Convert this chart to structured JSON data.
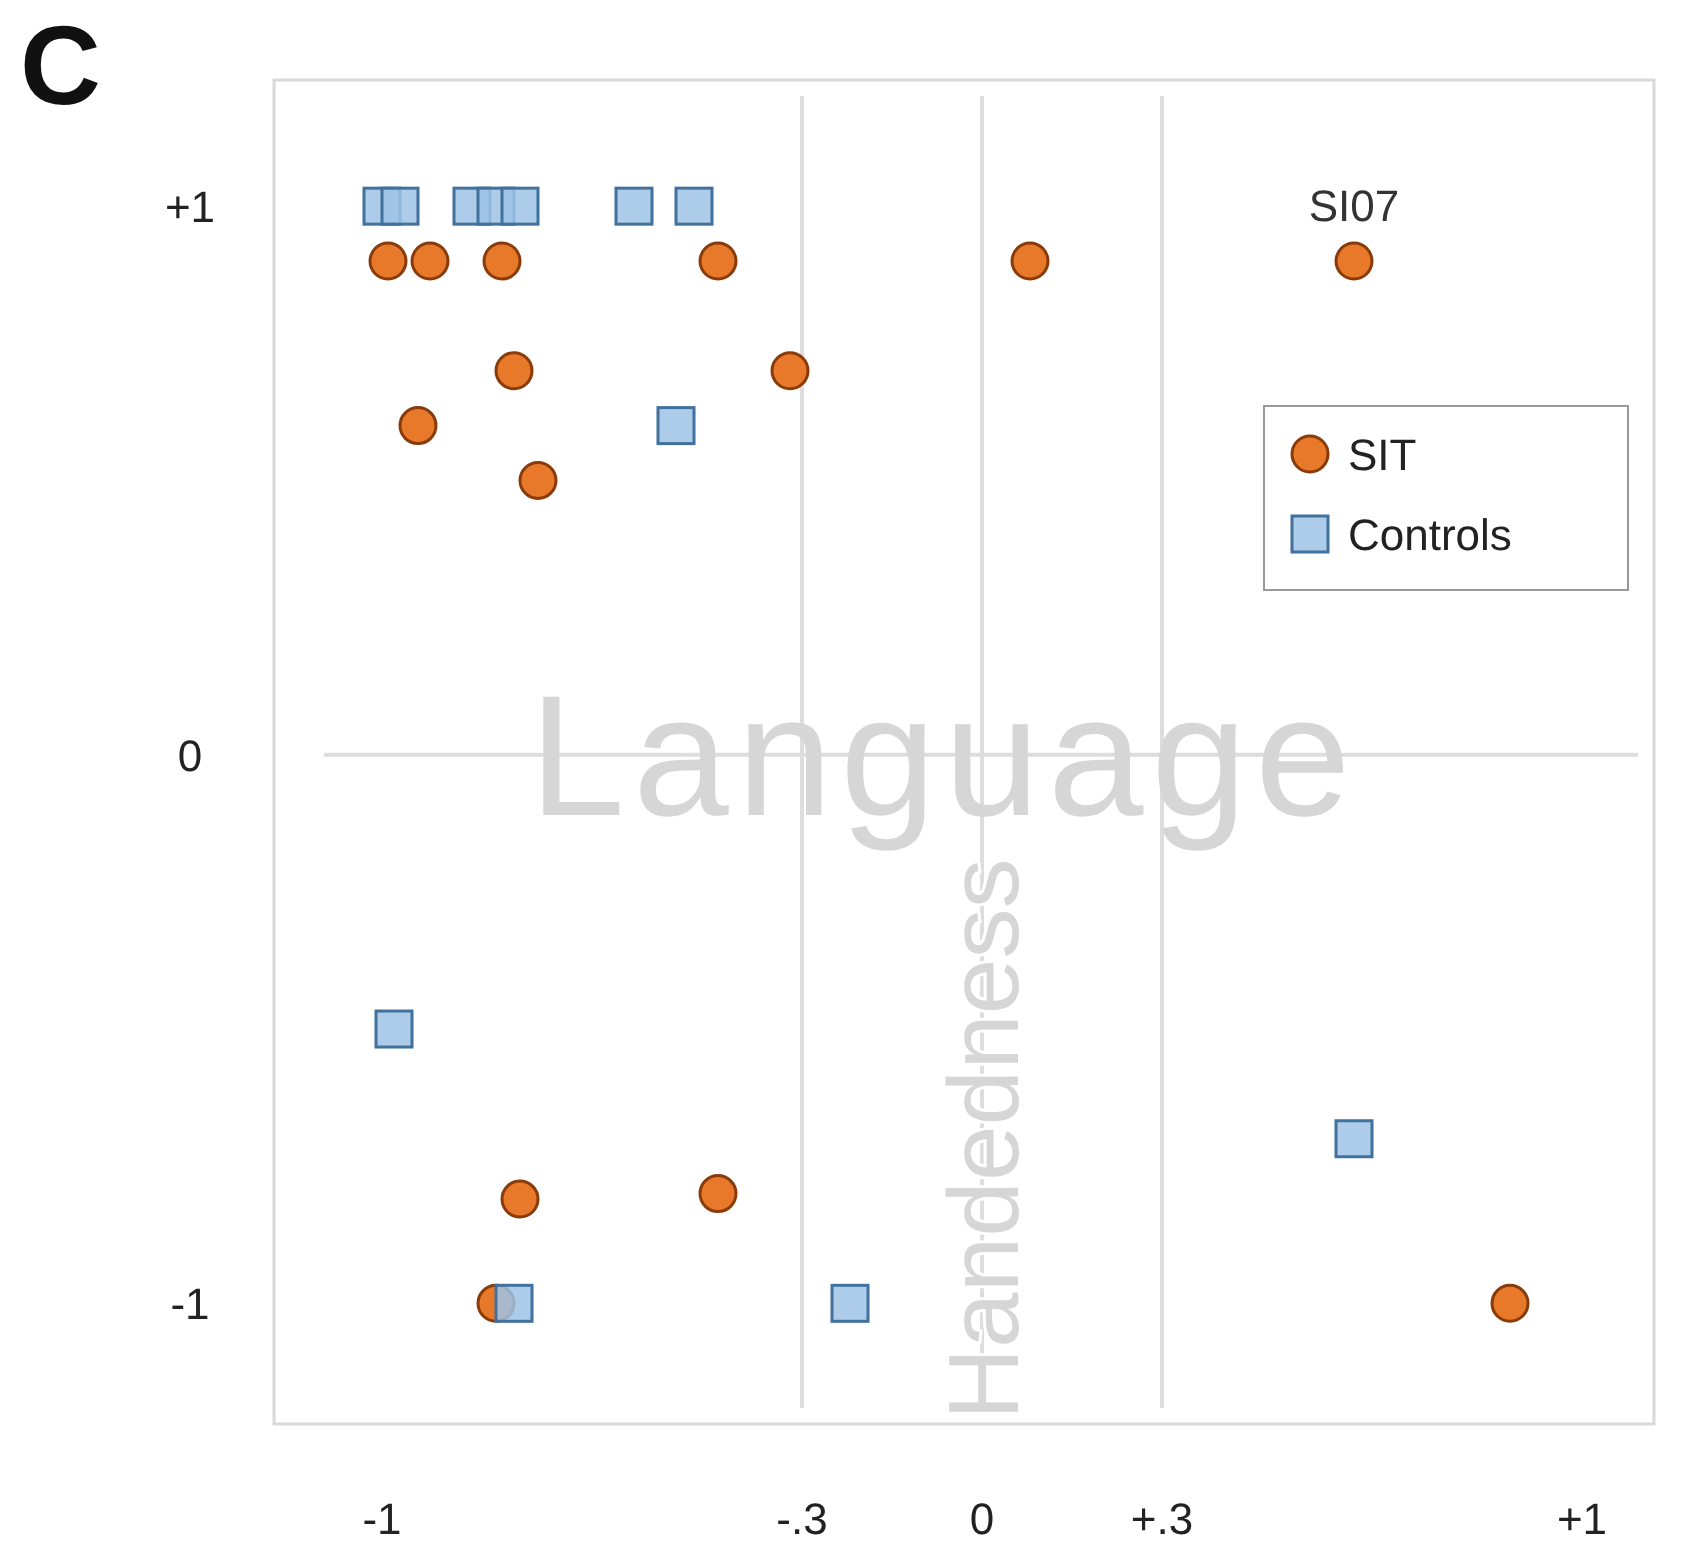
{
  "chart_data": {
    "type": "scatter",
    "xlabel": "Language",
    "ylabel": "Handedness",
    "annotations": [
      "C",
      {
        "text": "SI07",
        "x": 0.62,
        "y": 0.9
      }
    ],
    "xlim": [
      -1.18,
      1.12
    ],
    "ylim": [
      -1.22,
      1.23
    ],
    "xticks": [
      {
        "value": -1,
        "label": "-1"
      },
      {
        "value": -0.3,
        "label": "-.3"
      },
      0,
      {
        "value": 0.3,
        "label": "+.3"
      },
      {
        "value": 1,
        "label": "+1"
      }
    ],
    "yticks": [
      {
        "value": 1,
        "label": "+1"
      },
      0,
      {
        "value": -1,
        "label": "-1"
      }
    ],
    "ref_lines": [
      {
        "axis": "x",
        "value": -0.3,
        "color": "#dddddd"
      },
      {
        "axis": "x",
        "value": 0,
        "color": "#dddddd"
      },
      {
        "axis": "x",
        "value": 0.3,
        "color": "#dddddd"
      },
      {
        "axis": "y",
        "value": 0,
        "color": "#dddddd"
      }
    ],
    "legend": "top right",
    "series": [
      {
        "name": "SIT",
        "color": "#e8782a",
        "marker": "circle",
        "x": [
          -0.99,
          -0.92,
          -0.8,
          -0.44,
          0.08,
          0.62,
          -0.78,
          -0.32,
          -0.94,
          -0.74,
          -0.77,
          -0.44,
          -0.81,
          0.88
        ],
        "values": [
          0.9,
          0.9,
          0.9,
          0.9,
          0.9,
          0.9,
          0.7,
          0.7,
          0.6,
          0.5,
          -0.81,
          -0.8,
          -1,
          -1
        ]
      },
      {
        "name": "Controls",
        "color": "#9dc3e6",
        "marker": "square",
        "x": [
          -1,
          -0.97,
          -0.85,
          -0.81,
          -0.77,
          -0.58,
          -0.48,
          -0.51,
          -0.98,
          0.62,
          -0.78,
          -0.22
        ],
        "values": [
          1,
          1,
          1,
          1,
          1,
          1,
          1,
          0.6,
          -0.5,
          -0.7,
          -1,
          -1
        ]
      }
    ]
  }
}
